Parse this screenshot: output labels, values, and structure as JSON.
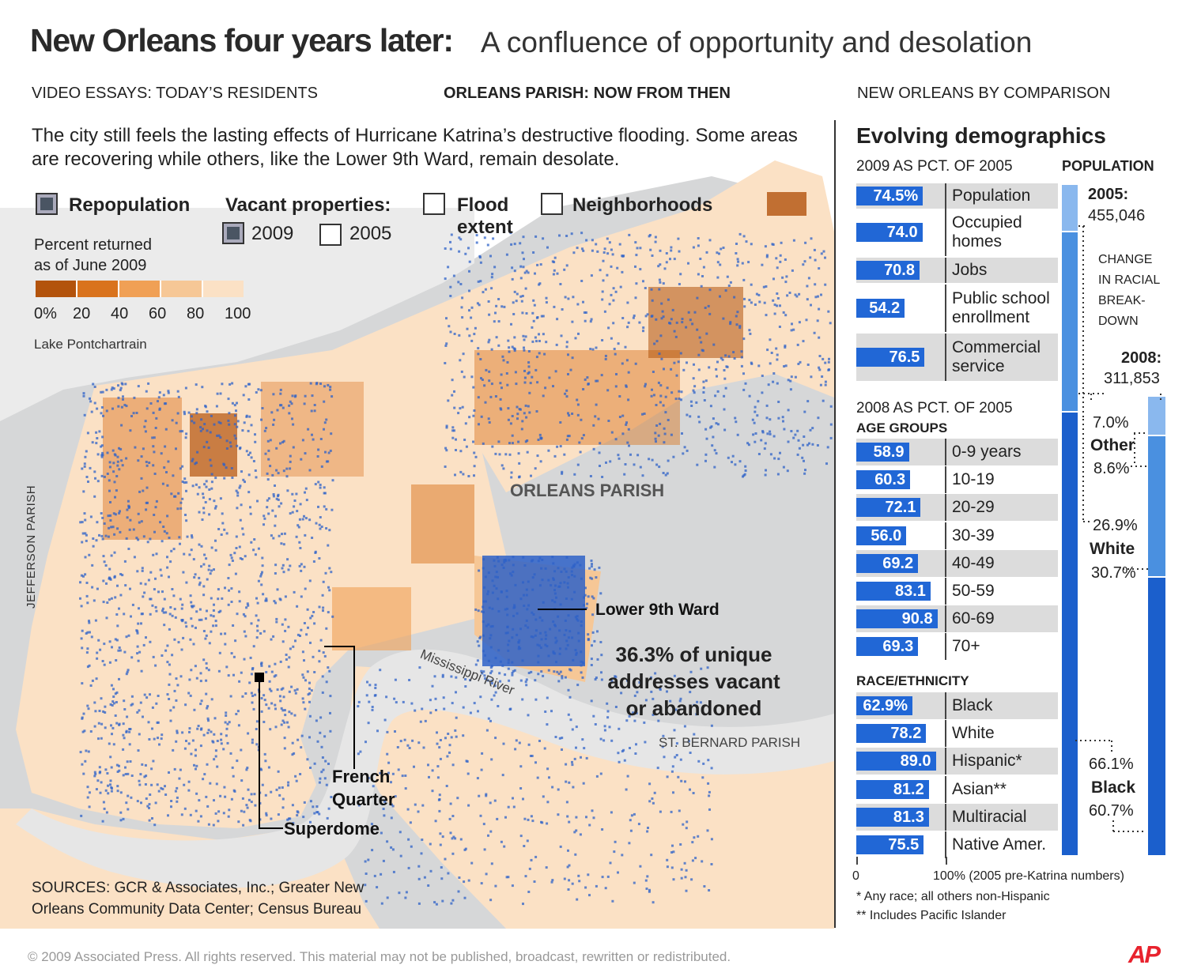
{
  "title": {
    "main": "New Orleans four years later:",
    "sub": "A confluence of opportunity and desolation"
  },
  "tabs": [
    {
      "label": "VIDEO ESSAYS: TODAY’S RESIDENTS"
    },
    {
      "label": "ORLEANS PARISH: NOW FROM THEN"
    },
    {
      "label": "NEW ORLEANS BY COMPARISON"
    }
  ],
  "intro": "The city still feels the lasting effects of Hurricane Katrina’s destructive flooding. Some areas are recovering while others, like the Lower 9th Ward, remain desolate.",
  "legend": {
    "repopulation": "Repopulation",
    "vacant": "Vacant properties:",
    "year2009": "2009",
    "year2005": "2005",
    "flood_1": "Flood",
    "flood_2": "extent",
    "neighborhoods": "Neighborhoods",
    "pct_1": "Percent returned",
    "pct_2": "as of June 2009",
    "scale_labels": [
      "0%",
      "20",
      "40",
      "60",
      "80",
      "100"
    ],
    "scale_colors": [
      "#b3530c",
      "#d9731d",
      "#f0a055",
      "#f6c796",
      "#fbe1c5"
    ]
  },
  "map": {
    "lake": "Lake Pontchartrain",
    "jefferson": "JEFFERSON PARISH",
    "orleans": "ORLEANS PARISH",
    "lower9": "Lower 9th Ward",
    "vacant_1": "36.3% of unique",
    "vacant_2": "addresses vacant",
    "vacant_3": "or abandoned",
    "river": "Mississippi River",
    "stbernard": "ST. BERNARD PARISH",
    "fq_1": "French",
    "fq_2": "Quarter",
    "superdome": "Superdome",
    "sources_1": "SOURCES: GCR & Associates, Inc.; Greater New",
    "sources_2": "Orleans Community Data Center; Census Bureau",
    "colors": {
      "water": "#d4d5d6",
      "land": "#fbe1c5",
      "vacant": "#2e62c8"
    }
  },
  "right": {
    "title": "Evolving demographics",
    "sec1": "2009 AS PCT. OF 2005",
    "population_head": "POPULATION",
    "rows1": [
      {
        "value": 74.5,
        "text": "74.5%",
        "label_1": "Population",
        "label_2": ""
      },
      {
        "value": 74.0,
        "text": "74.0",
        "label_1": "Occupied",
        "label_2": "homes"
      },
      {
        "value": 70.8,
        "text": "70.8",
        "label_1": "Jobs",
        "label_2": ""
      },
      {
        "value": 54.2,
        "text": "54.2",
        "label_1": "Public school",
        "label_2": "enrollment"
      },
      {
        "value": 76.5,
        "text": "76.5",
        "label_1": "Commercial",
        "label_2": "service"
      }
    ],
    "sec2": "2008 AS PCT. OF 2005",
    "age_head": "AGE GROUPS",
    "rows2": [
      {
        "value": 58.9,
        "text": "58.9",
        "label": "0-9 years"
      },
      {
        "value": 60.3,
        "text": "60.3",
        "label": "10-19"
      },
      {
        "value": 72.1,
        "text": "72.1",
        "label": "20-29"
      },
      {
        "value": 56.0,
        "text": "56.0",
        "label": "30-39"
      },
      {
        "value": 69.2,
        "text": "69.2",
        "label": "40-49"
      },
      {
        "value": 83.1,
        "text": "83.1",
        "label": "50-59"
      },
      {
        "value": 90.8,
        "text": "90.8",
        "label": "60-69"
      },
      {
        "value": 69.3,
        "text": "69.3",
        "label": "70+"
      }
    ],
    "race_head": "RACE/ETHNICITY",
    "rows3": [
      {
        "value": 62.9,
        "text": "62.9%",
        "label": "Black"
      },
      {
        "value": 78.2,
        "text": "78.2",
        "label": "White"
      },
      {
        "value": 89.0,
        "text": "89.0",
        "label": "Hispanic*"
      },
      {
        "value": 81.2,
        "text": "81.2",
        "label": "Asian**"
      },
      {
        "value": 81.3,
        "text": "81.3",
        "label": "Multiracial"
      },
      {
        "value": 75.5,
        "text": "75.5",
        "label": "Native Amer."
      }
    ],
    "axis_0": "0",
    "axis_100": "100% (2005 pre-Katrina numbers)",
    "note1": "* Any race; all others non-Hispanic",
    "note2": "** Includes Pacific Islander",
    "pop2005_label": "2005:",
    "pop2005_value": "455,046",
    "pop2008_label": "2008:",
    "pop2008_value": "311,853",
    "change_1": "CHANGE",
    "change_2": "IN RACIAL",
    "change_3": "BREAK-",
    "change_4": "DOWN",
    "other_2005": "7.0%",
    "other_label": "Other",
    "other_2008": "8.6%",
    "white_2005": "26.9%",
    "white_label": "White",
    "white_2008": "30.7%",
    "black_2005": "66.1%",
    "black_label": "Black",
    "black_2008": "60.7%",
    "stack_2005": [
      66.1,
      26.9,
      7.0
    ],
    "stack_2008": [
      60.7,
      30.7,
      8.6
    ],
    "stack_colors": [
      "#1b5fcc",
      "#4a90e0",
      "#8ab8ee"
    ]
  },
  "footer": "© 2009 Associated Press. All rights reserved. This material may not be published, broadcast, rewritten or redistributed.",
  "logo": "AP"
}
